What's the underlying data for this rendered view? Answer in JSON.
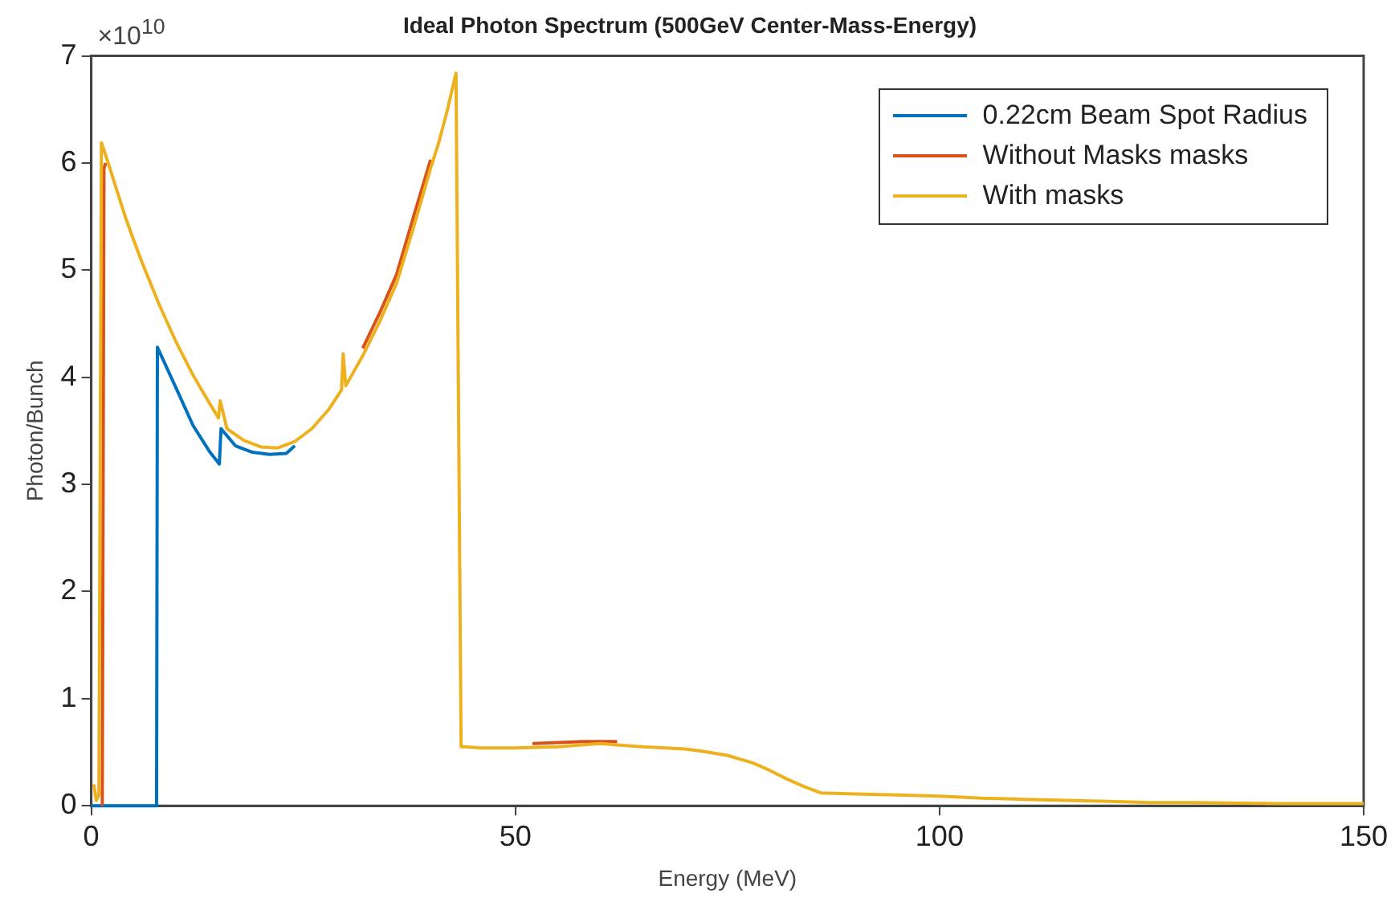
{
  "chart_data": {
    "type": "line",
    "title": "Ideal Photon Spectrum (500GeV Center-Mass-Energy)",
    "xlabel": "Energy (MeV)",
    "ylabel": "Photon/Bunch",
    "annotations": [
      "×10$^{10}$"
    ],
    "xlim": [
      0,
      150
    ],
    "xticks": [
      0,
      50,
      100,
      150
    ],
    "ylim": [
      0,
      7
    ],
    "yticks": [
      0,
      1,
      2,
      3,
      4,
      5,
      6,
      7
    ],
    "grid": false,
    "legend": "top right",
    "marker": "none",
    "line_style": "solid",
    "series": [
      {
        "name": "0.22cm Beam Spot Radius",
        "color": "#0072bd",
        "x": [
          0,
          7.7,
          7.8,
          10,
          12,
          14,
          15.1,
          15.3,
          17,
          19,
          21,
          23,
          24
        ],
        "values": [
          0,
          0,
          4.28,
          3.9,
          3.55,
          3.3,
          3.19,
          3.52,
          3.36,
          3.3,
          3.28,
          3.29,
          3.36
        ]
      },
      {
        "name": "Without Masks masks",
        "color": "#d95319",
        "x": [
          1.3,
          1.5,
          1.7,
          2.2,
          32,
          34,
          36,
          38,
          40,
          41,
          52,
          55,
          58,
          62
        ],
        "values": [
          0,
          5.95,
          6.0,
          null,
          4.27,
          4.6,
          4.96,
          5.5,
          6.03,
          null,
          0.58,
          0.59,
          0.6,
          0.6
        ]
      },
      {
        "name": "With masks",
        "color": "#edb120",
        "x": [
          0.3,
          0.6,
          0.9,
          1.2,
          2,
          3,
          4,
          5,
          6,
          8,
          10,
          12,
          14,
          15,
          15.2,
          16,
          18,
          20,
          22,
          24,
          26,
          28,
          29.5,
          29.7,
          30,
          32,
          34,
          36,
          38,
          40,
          41,
          42,
          43,
          43.6,
          44,
          46,
          50,
          55,
          60,
          65,
          70,
          72,
          75,
          78,
          80,
          82,
          84,
          86,
          90,
          95,
          100,
          105,
          110,
          115,
          120,
          125,
          130,
          140,
          150
        ],
        "values": [
          0.2,
          0.05,
          0.1,
          6.19,
          6.0,
          5.75,
          5.5,
          5.28,
          5.07,
          4.68,
          4.33,
          4.02,
          3.75,
          3.62,
          3.78,
          3.52,
          3.41,
          3.35,
          3.34,
          3.4,
          3.52,
          3.7,
          3.88,
          4.22,
          3.92,
          4.2,
          4.52,
          4.88,
          5.4,
          5.95,
          6.2,
          6.5,
          6.84,
          0.55,
          0.55,
          0.54,
          0.54,
          0.55,
          0.58,
          0.55,
          0.53,
          0.51,
          0.47,
          0.4,
          0.33,
          0.25,
          0.18,
          0.12,
          0.11,
          0.1,
          0.09,
          0.07,
          0.06,
          0.05,
          0.04,
          0.03,
          0.03,
          0.02,
          0.02
        ]
      }
    ]
  }
}
